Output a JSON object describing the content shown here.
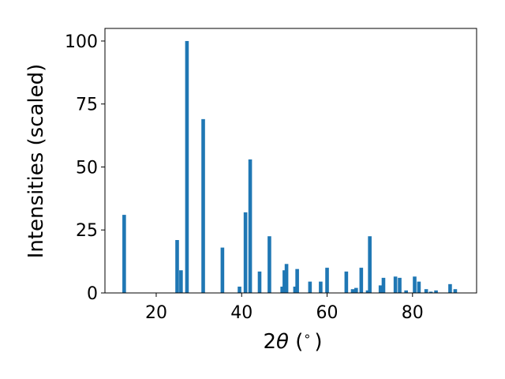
{
  "chart_data": {
    "type": "bar",
    "xlabel": "2θ (°)",
    "xlabel_parts": {
      "prefix": "2",
      "symbol": "θ",
      "suffix": " (",
      "degree": "∘",
      "close": ")"
    },
    "ylabel": "Intensities (scaled)",
    "xlim": [
      8,
      95
    ],
    "ylim": [
      0,
      105
    ],
    "xticks": [
      20,
      40,
      60,
      80
    ],
    "yticks": [
      0,
      25,
      50,
      75,
      100
    ],
    "grid": false,
    "bar_color": "#1f77b4",
    "x": [
      12.5,
      24.9,
      25.8,
      27.2,
      31.0,
      35.5,
      39.5,
      40.9,
      42.0,
      44.2,
      46.5,
      49.5,
      50.0,
      50.5,
      52.5,
      53.0,
      56.0,
      58.5,
      60.0,
      64.5,
      66.0,
      66.8,
      68.0,
      69.5,
      70.0,
      72.5,
      73.2,
      76.0,
      77.0,
      78.5,
      80.5,
      81.5,
      83.2,
      84.3,
      85.5,
      88.8,
      90.0
    ],
    "values": [
      31,
      21,
      9,
      100,
      69,
      18,
      2.5,
      32,
      53,
      8.5,
      22.5,
      2.5,
      9,
      11.5,
      2.5,
      9.5,
      4.5,
      4.5,
      10,
      8.5,
      1.5,
      2,
      10,
      1,
      22.5,
      3,
      6,
      6.5,
      6,
      1,
      6.5,
      4.5,
      1.5,
      0.5,
      1,
      3.5,
      1.5
    ]
  }
}
